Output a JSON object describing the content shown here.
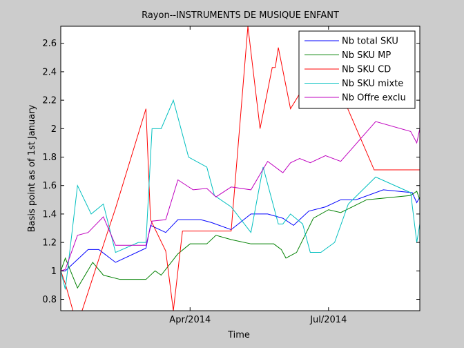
{
  "chart_data": {
    "type": "line",
    "title": "Rayon--INSTRUMENTS DE MUSIQUE ENFANT",
    "xlabel": "Time",
    "ylabel": "Basis point as of 1st January",
    "xlim": [
      "2014-01-06",
      "2014-08-30"
    ],
    "ylim": [
      0.72,
      2.72
    ],
    "yticks": [
      0.8,
      1,
      1.2,
      1.4,
      1.6,
      1.8,
      2,
      2.2,
      2.4,
      2.6
    ],
    "yticklabels": [
      "0.8",
      "1",
      "1.2",
      "1.4",
      "1.6",
      "1.8",
      "2",
      "2.2",
      "2.4",
      "2.6"
    ],
    "xticks": [
      "2014-04-01",
      "2014-07-01"
    ],
    "xticklabels": [
      "Apr/2014",
      "Jul/2014"
    ],
    "grid": false,
    "legend": "top-right",
    "series": [
      {
        "name": "Nb total SKU",
        "color": "#0000ff",
        "points": [
          [
            "2014-01-06",
            1.0
          ],
          [
            "2014-01-09",
            1.0
          ],
          [
            "2014-01-24",
            1.15
          ],
          [
            "2014-01-31",
            1.15
          ],
          [
            "2014-02-11",
            1.06
          ],
          [
            "2014-03-03",
            1.16
          ],
          [
            "2014-03-06",
            1.32
          ],
          [
            "2014-03-16",
            1.27
          ],
          [
            "2014-03-24",
            1.36
          ],
          [
            "2014-04-08",
            1.36
          ],
          [
            "2014-04-15",
            1.34
          ],
          [
            "2014-04-28",
            1.29
          ],
          [
            "2014-05-11",
            1.4
          ],
          [
            "2014-05-22",
            1.4
          ],
          [
            "2014-06-01",
            1.37
          ],
          [
            "2014-06-08",
            1.32
          ],
          [
            "2014-06-18",
            1.42
          ],
          [
            "2014-06-29",
            1.45
          ],
          [
            "2014-07-09",
            1.5
          ],
          [
            "2014-07-19",
            1.5
          ],
          [
            "2014-08-06",
            1.57
          ],
          [
            "2014-08-25",
            1.55
          ],
          [
            "2014-08-28",
            1.48
          ],
          [
            "2014-08-30",
            1.52
          ]
        ]
      },
      {
        "name": "Nb SKU MP",
        "color": "#008000",
        "points": [
          [
            "2014-01-06",
            1.0
          ],
          [
            "2014-01-09",
            1.09
          ],
          [
            "2014-01-17",
            0.88
          ],
          [
            "2014-01-27",
            1.06
          ],
          [
            "2014-02-03",
            0.97
          ],
          [
            "2014-02-14",
            0.94
          ],
          [
            "2014-03-03",
            0.94
          ],
          [
            "2014-03-09",
            1.0
          ],
          [
            "2014-03-13",
            0.97
          ],
          [
            "2014-03-24",
            1.12
          ],
          [
            "2014-04-01",
            1.19
          ],
          [
            "2014-04-12",
            1.19
          ],
          [
            "2014-04-18",
            1.25
          ],
          [
            "2014-04-28",
            1.22
          ],
          [
            "2014-05-11",
            1.19
          ],
          [
            "2014-05-22",
            1.19
          ],
          [
            "2014-05-26",
            1.19
          ],
          [
            "2014-05-31",
            1.15
          ],
          [
            "2014-06-03",
            1.09
          ],
          [
            "2014-06-10",
            1.13
          ],
          [
            "2014-06-21",
            1.37
          ],
          [
            "2014-07-01",
            1.43
          ],
          [
            "2014-07-09",
            1.41
          ],
          [
            "2014-07-26",
            1.5
          ],
          [
            "2014-08-24",
            1.53
          ],
          [
            "2014-08-28",
            1.56
          ],
          [
            "2014-08-30",
            1.5
          ]
        ]
      },
      {
        "name": "Nb SKU CD",
        "color": "#ff0000",
        "points": [
          [
            "2014-01-06",
            1.0
          ],
          [
            "2014-01-09",
            0.91
          ],
          [
            "2014-01-14",
            0.72
          ],
          [
            "2014-01-20",
            0.72
          ],
          [
            "2014-02-06",
            1.28
          ],
          [
            "2014-02-11",
            1.44
          ],
          [
            "2014-03-03",
            2.14
          ],
          [
            "2014-03-06",
            1.36
          ],
          [
            "2014-03-16",
            1.14
          ],
          [
            "2014-03-21",
            0.72
          ],
          [
            "2014-03-27",
            1.28
          ],
          [
            "2014-04-01",
            1.28
          ],
          [
            "2014-04-28",
            1.28
          ],
          [
            "2014-05-09",
            2.72
          ],
          [
            "2014-05-17",
            2.0
          ],
          [
            "2014-05-25",
            2.43
          ],
          [
            "2014-05-27",
            2.43
          ],
          [
            "2014-05-29",
            2.57
          ],
          [
            "2014-06-06",
            2.14
          ],
          [
            "2014-06-14",
            2.28
          ],
          [
            "2014-07-08",
            2.28
          ],
          [
            "2014-07-31",
            1.71
          ],
          [
            "2014-08-30",
            1.71
          ]
        ]
      },
      {
        "name": "Nb SKU mixte",
        "color": "#00bfbf",
        "points": [
          [
            "2014-01-06",
            1.0
          ],
          [
            "2014-01-09",
            0.87
          ],
          [
            "2014-01-17",
            1.6
          ],
          [
            "2014-01-26",
            1.4
          ],
          [
            "2014-02-03",
            1.47
          ],
          [
            "2014-02-11",
            1.13
          ],
          [
            "2014-02-26",
            1.2
          ],
          [
            "2014-03-03",
            1.2
          ],
          [
            "2014-03-07",
            2.0
          ],
          [
            "2014-03-13",
            2.0
          ],
          [
            "2014-03-21",
            2.2
          ],
          [
            "2014-03-31",
            1.8
          ],
          [
            "2014-04-12",
            1.73
          ],
          [
            "2014-04-17",
            1.53
          ],
          [
            "2014-04-28",
            1.45
          ],
          [
            "2014-05-11",
            1.27
          ],
          [
            "2014-05-19",
            1.73
          ],
          [
            "2014-05-29",
            1.33
          ],
          [
            "2014-06-01",
            1.33
          ],
          [
            "2014-06-06",
            1.4
          ],
          [
            "2014-06-14",
            1.33
          ],
          [
            "2014-06-19",
            1.13
          ],
          [
            "2014-06-26",
            1.13
          ],
          [
            "2014-07-05",
            1.2
          ],
          [
            "2014-07-14",
            1.47
          ],
          [
            "2014-08-01",
            1.66
          ],
          [
            "2014-08-24",
            1.55
          ],
          [
            "2014-08-28",
            1.2
          ],
          [
            "2014-08-30",
            1.33
          ]
        ]
      },
      {
        "name": "Nb Offre exclu",
        "color": "#bf00bf",
        "points": [
          [
            "2014-01-06",
            1.0
          ],
          [
            "2014-01-09",
            1.01
          ],
          [
            "2014-01-17",
            1.25
          ],
          [
            "2014-01-24",
            1.27
          ],
          [
            "2014-02-03",
            1.38
          ],
          [
            "2014-02-11",
            1.18
          ],
          [
            "2014-03-03",
            1.18
          ],
          [
            "2014-03-07",
            1.35
          ],
          [
            "2014-03-16",
            1.36
          ],
          [
            "2014-03-24",
            1.64
          ],
          [
            "2014-04-03",
            1.57
          ],
          [
            "2014-04-12",
            1.58
          ],
          [
            "2014-04-18",
            1.52
          ],
          [
            "2014-04-28",
            1.59
          ],
          [
            "2014-05-11",
            1.57
          ],
          [
            "2014-05-22",
            1.77
          ],
          [
            "2014-06-01",
            1.69
          ],
          [
            "2014-06-06",
            1.76
          ],
          [
            "2014-06-12",
            1.79
          ],
          [
            "2014-06-19",
            1.76
          ],
          [
            "2014-06-29",
            1.81
          ],
          [
            "2014-07-09",
            1.77
          ],
          [
            "2014-08-01",
            2.05
          ],
          [
            "2014-08-24",
            1.98
          ],
          [
            "2014-08-28",
            1.9
          ],
          [
            "2014-08-30",
            2.0
          ]
        ]
      }
    ]
  }
}
